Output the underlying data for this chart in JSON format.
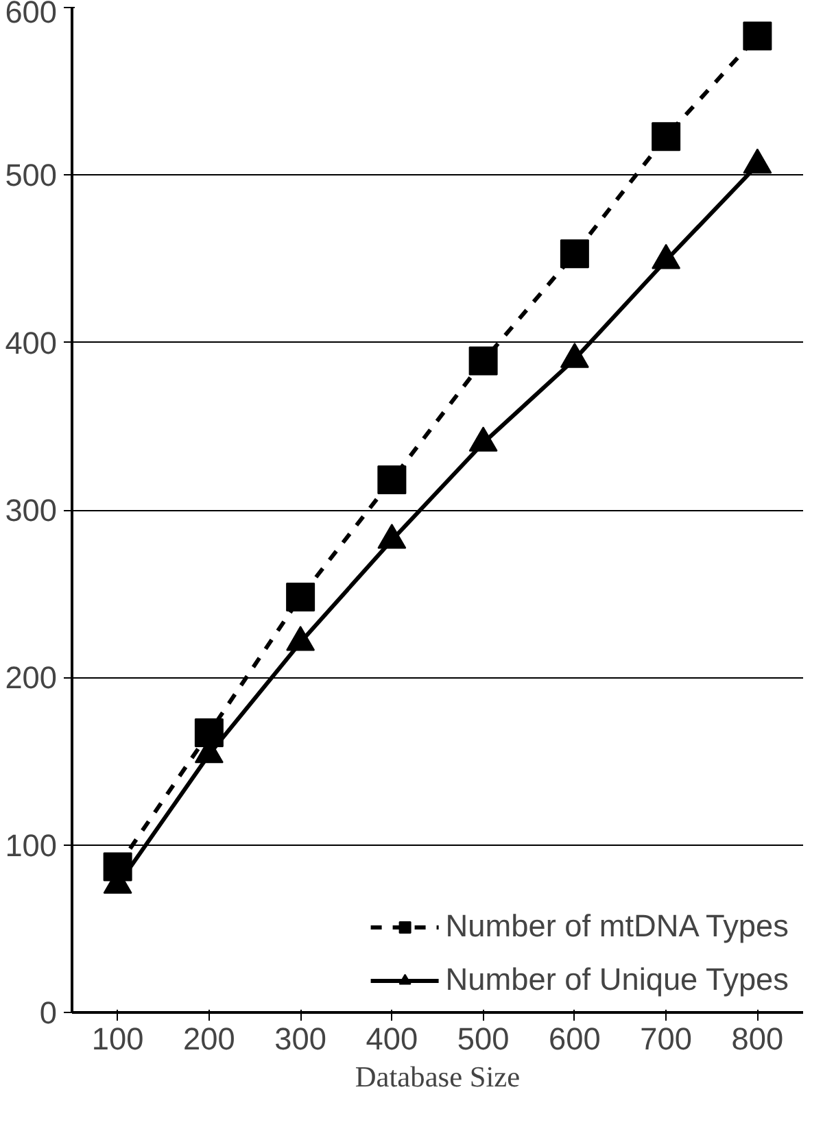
{
  "chart_data": {
    "type": "line",
    "xlabel": "Database Size",
    "categories": [
      "100",
      "200",
      "300",
      "400",
      "500",
      "600",
      "700",
      "800"
    ],
    "series": [
      {
        "name": "Number of mtDNA Types",
        "color": "#000000",
        "marker": "square",
        "line_style": "dashed",
        "values": [
          87,
          167,
          248,
          318,
          389,
          453,
          523,
          583
        ]
      },
      {
        "name": "Number of Unique Types",
        "color": "#000000",
        "marker": "triangle",
        "line_style": "solid",
        "values": [
          76,
          154,
          221,
          282,
          340,
          390,
          449,
          506
        ]
      }
    ],
    "ylim": [
      0,
      600
    ],
    "yticks": [
      0,
      100,
      200,
      300,
      400,
      500,
      600
    ],
    "grid": "y",
    "legend": "bottom right"
  }
}
